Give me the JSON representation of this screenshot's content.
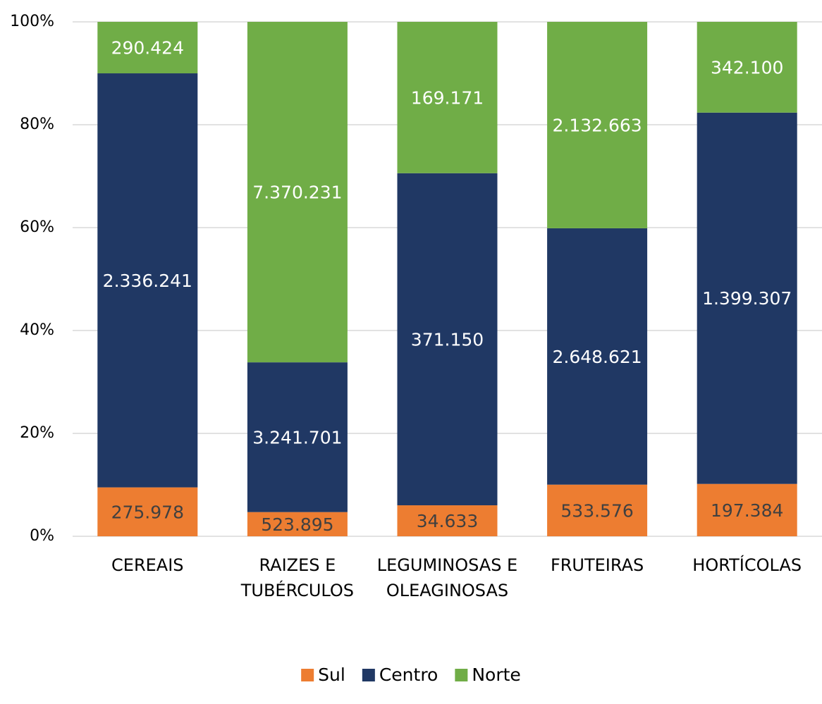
{
  "chart_data": {
    "type": "bar",
    "stacking": "percent",
    "categories": [
      "CEREAIS",
      "RAIZES E TUBÉRCULOS",
      "LEGUMINOSAS E OLEAGINOSAS",
      "FRUTEIRAS",
      "HORTÍCOLAS"
    ],
    "series": [
      {
        "name": "Sul",
        "color": "#ed7d31",
        "label_color": "#404040",
        "values": [
          275978,
          523895,
          34633,
          533576,
          197384
        ],
        "value_labels": [
          "275.978",
          "523.895",
          "34.633",
          "533.576",
          "197.384"
        ]
      },
      {
        "name": "Centro",
        "color": "#203864",
        "label_color": "#ffffff",
        "values": [
          2336241,
          3241701,
          371150,
          2648621,
          1399307
        ],
        "value_labels": [
          "2.336.241",
          "3.241.701",
          "371.150",
          "2.648.621",
          "1.399.307"
        ]
      },
      {
        "name": "Norte",
        "color": "#70ad47",
        "label_color": "#ffffff",
        "values": [
          290424,
          7370231,
          169171,
          2132663,
          342100
        ],
        "value_labels": [
          "290.424",
          "7.370.231",
          "169.171",
          "2.132.663",
          "342.100"
        ]
      }
    ],
    "ylim": [
      0,
      100
    ],
    "yticks": [
      {
        "value": 0,
        "label": "0%"
      },
      {
        "value": 20,
        "label": "20%"
      },
      {
        "value": 40,
        "label": "40%"
      },
      {
        "value": 60,
        "label": "60%"
      },
      {
        "value": 80,
        "label": "80%"
      },
      {
        "value": 100,
        "label": "100%"
      }
    ],
    "grid": true,
    "legend": "bottom"
  }
}
